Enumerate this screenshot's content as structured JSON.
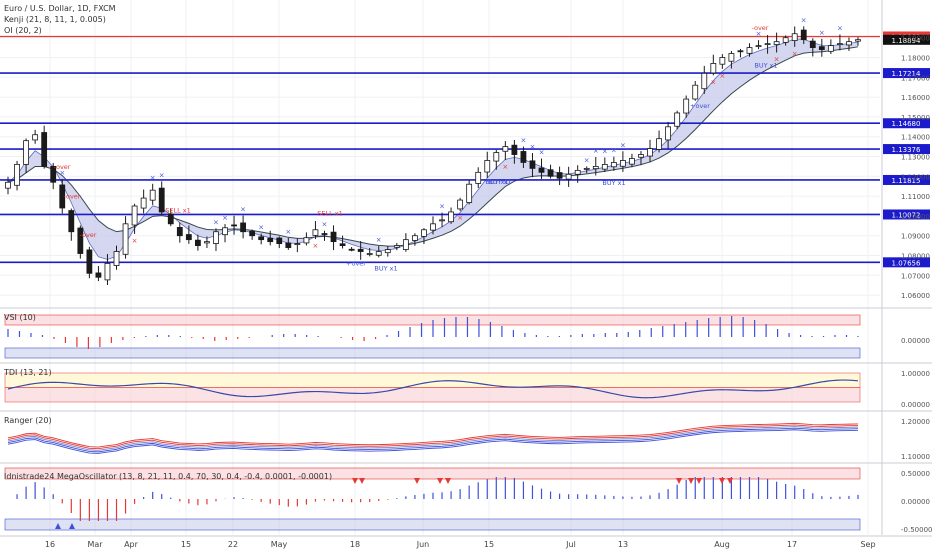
{
  "header": {
    "symbol_title": "Euro / U.S. Dollar, 1D, FXCM",
    "indicator_1": "Kenji (21, 8, 11, 1, 0.005)",
    "indicator_2": "OI (20, 2)"
  },
  "colors": {
    "candle": "#1a1a1a",
    "level_line": "#1b1bcc",
    "resistance_line": "#e53935",
    "blue_cross": "#3f51d8",
    "red_cross": "#e53935",
    "band_green_fill": "#c8e6c9",
    "band_red_fill": "#f8c8cc",
    "band_blue_fill": "#c5cae9",
    "osc_blue": "#3f51d8",
    "osc_red": "#e53935"
  },
  "chart_data": [
    {
      "type": "candlestick",
      "pane": "price",
      "x_labels": [
        "16",
        "Mar",
        "Apr",
        "15",
        "22",
        "May",
        "18",
        "Jun",
        "15",
        "Jul",
        "13",
        "Aug",
        "17",
        "Sep"
      ],
      "y_ticks": [
        "1.19000",
        "1.18000",
        "1.17000",
        "1.16000",
        "1.15000",
        "1.14000",
        "1.13000",
        "1.12000",
        "1.11000",
        "1.10000",
        "1.09000",
        "1.08000",
        "1.07000",
        "1.06000"
      ],
      "ylim": [
        1.055,
        1.205
      ],
      "horizontal_levels": [
        "1.17214",
        "1.14680",
        "1.13376",
        "1.11815",
        "1.10072",
        "1.07656"
      ],
      "resistance_level": "1.19061",
      "last_price": "1.18894",
      "close_path": [
        1.117,
        1.126,
        1.138,
        1.141,
        1.125,
        1.117,
        1.104,
        1.092,
        1.081,
        1.071,
        1.069,
        1.076,
        1.082,
        1.096,
        1.105,
        1.109,
        1.113,
        1.102,
        1.096,
        1.09,
        1.088,
        1.085,
        1.087,
        1.092,
        1.094,
        1.095,
        1.092,
        1.09,
        1.088,
        1.087,
        1.086,
        1.084,
        1.086,
        1.089,
        1.093,
        1.091,
        1.087,
        1.085,
        1.083,
        1.082,
        1.081,
        1.082,
        1.083,
        1.085,
        1.088,
        1.09,
        1.093,
        1.096,
        1.098,
        1.102,
        1.108,
        1.116,
        1.122,
        1.128,
        1.132,
        1.135,
        1.131,
        1.127,
        1.124,
        1.122,
        1.12,
        1.119,
        1.121,
        1.123,
        1.124,
        1.125,
        1.126,
        1.127,
        1.128,
        1.129,
        1.131,
        1.134,
        1.139,
        1.145,
        1.152,
        1.159,
        1.166,
        1.172,
        1.177,
        1.18,
        1.182,
        1.183,
        1.185,
        1.186,
        1.187,
        1.188,
        1.19,
        1.192,
        1.189,
        1.185,
        1.184,
        1.186,
        1.187,
        1.188,
        1.189
      ],
      "annotations": [
        "SELL x1",
        "SELL x1",
        "BUY x1",
        "BUY x1",
        "BUY x1",
        "BUY x1",
        "BUY x1",
        "-over",
        "-over",
        "+over",
        "+over",
        "-over",
        "-over"
      ]
    },
    {
      "type": "bar",
      "pane": "oscillator",
      "name": "VSI (10)",
      "y_ticks": [
        "0.00000"
      ],
      "values_path": [
        0.08,
        0.06,
        0.04,
        0.02,
        -0.02,
        -0.06,
        -0.1,
        -0.12,
        -0.1,
        -0.06,
        -0.03,
        -0.01,
        0.01,
        0.02,
        0.02,
        0.01,
        -0.01,
        -0.02,
        -0.04,
        -0.03,
        -0.02,
        -0.01,
        0,
        0.02,
        0.03,
        0.03,
        0.02,
        0.01,
        0,
        -0.01,
        -0.03,
        -0.04,
        -0.02,
        0.02,
        0.06,
        0.1,
        0.14,
        0.17,
        0.19,
        0.2,
        0.2,
        0.18,
        0.15,
        0.11,
        0.07,
        0.04,
        0.02,
        0.01,
        0.01,
        0.02,
        0.03,
        0.03,
        0.04,
        0.04,
        0.05,
        0.07,
        0.09,
        0.11,
        0.13,
        0.15,
        0.17,
        0.19,
        0.2,
        0.21,
        0.2,
        0.17,
        0.13,
        0.08,
        0.04,
        0.02,
        0.01,
        0.01,
        0.02,
        0.02,
        0.01
      ]
    },
    {
      "type": "line",
      "pane": "oscillator",
      "name": "TDI (13, 21)",
      "y_ticks": [
        "1.00000",
        "0.00000"
      ]
    },
    {
      "type": "line",
      "pane": "oscillator",
      "name": "Ranger (20)",
      "y_ticks": [
        "1.20000",
        "1.10000"
      ]
    },
    {
      "type": "bar",
      "pane": "oscillator",
      "name": "Idnistrade24 MegaOscillator (13, 8, 21, 11, 0.4, 70, 30, 0.4, -0.4, 0.0001, -0.0001)",
      "y_ticks": [
        "0.50000",
        "0.00000",
        "-0.50000"
      ]
    }
  ]
}
